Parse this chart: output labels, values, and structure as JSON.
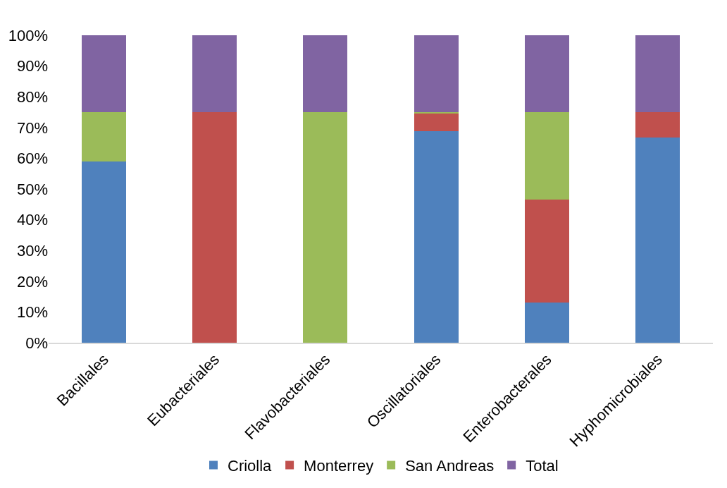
{
  "chart_data": {
    "type": "bar",
    "stacked": true,
    "categories": [
      "Bacillales",
      "Eubacteriales",
      "Flavobacteriales",
      "Oscillatoriales",
      "Enterobacterales",
      "Hyphomicrobiales"
    ],
    "series": [
      {
        "name": "Criolla",
        "color": "#4f81bd",
        "values": [
          59.0,
          0,
          0,
          68.8,
          13.1,
          66.7
        ]
      },
      {
        "name": "Monterrey",
        "color": "#c0504d",
        "values": [
          0,
          75,
          0,
          5.9,
          33.5,
          8.3
        ]
      },
      {
        "name": "San Andreas",
        "color": "#9bbb59",
        "values": [
          16.0,
          0,
          75,
          0.3,
          28.4,
          0
        ]
      },
      {
        "name": "Total",
        "color": "#8064a2",
        "values": [
          25,
          25,
          25,
          25,
          25,
          25
        ]
      }
    ],
    "ylim": [
      0,
      100
    ],
    "yticks": [
      {
        "value": 0,
        "label": "0%"
      },
      {
        "value": 10,
        "label": "10%"
      },
      {
        "value": 20,
        "label": "20%"
      },
      {
        "value": 30,
        "label": "30%"
      },
      {
        "value": 40,
        "label": "40%"
      },
      {
        "value": 50,
        "label": "50%"
      },
      {
        "value": 60,
        "label": "60%"
      },
      {
        "value": 70,
        "label": "70%"
      },
      {
        "value": 80,
        "label": "80%"
      },
      {
        "value": 90,
        "label": "90%"
      },
      {
        "value": 100,
        "label": "100%"
      }
    ],
    "legend": "bottom"
  }
}
